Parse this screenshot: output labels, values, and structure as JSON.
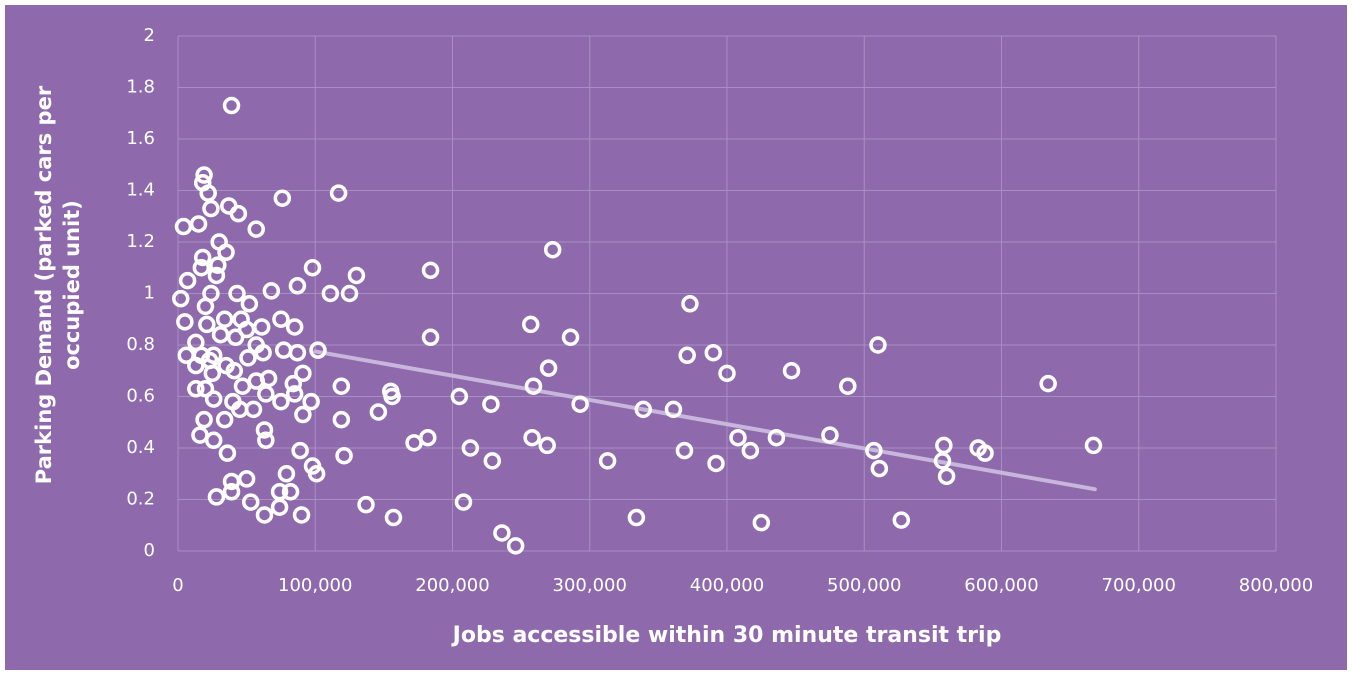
{
  "chart_data": {
    "type": "scatter",
    "x_label": "Jobs accessible within 30 minute transit trip",
    "y_label": "Parking Demand (parked cars per occupied unit)",
    "background": "#8e6aad",
    "marker_color": "#ffffff",
    "grid": true,
    "xlim": [
      0,
      800000
    ],
    "xticks": [
      0,
      {
        "value": 100000,
        "label": "100,000"
      },
      {
        "value": 200000,
        "label": "200,000"
      },
      {
        "value": 300000,
        "label": "300,000"
      },
      {
        "value": 400000,
        "label": "400,000"
      },
      {
        "value": 500000,
        "label": "500,000"
      },
      {
        "value": 600000,
        "label": "600,000"
      },
      {
        "value": 700000,
        "label": "700,000"
      },
      {
        "value": 800000,
        "label": "800,000"
      }
    ],
    "ylim": [
      0,
      2
    ],
    "yticks": [
      0,
      0.2,
      0.4,
      0.6,
      0.8,
      1,
      1.2,
      1.4,
      1.6,
      1.8,
      2
    ],
    "x": [
      667000,
      634000,
      583000,
      588000,
      558000,
      557000,
      560000,
      527000,
      510000,
      507000,
      511000,
      488000,
      475000,
      447000,
      436000,
      425000,
      417000,
      408000,
      400000,
      392000,
      390000,
      373000,
      371000,
      369000,
      361000,
      339000,
      334000,
      313000,
      293000,
      286000,
      273000,
      270000,
      269000,
      259000,
      258000,
      257000,
      246000,
      236000,
      229000,
      228000,
      213000,
      208000,
      205000,
      184000,
      184000,
      182000,
      172000,
      156000,
      155000,
      157000,
      146000,
      137000,
      130000,
      125000,
      121000,
      119000,
      119000,
      117000,
      111000,
      102000,
      101000,
      98000,
      98000,
      97000,
      91000,
      91000,
      90000,
      89000,
      87000,
      85000,
      87000,
      84000,
      85000,
      82000,
      79000,
      75000,
      74000,
      74000,
      76000,
      75000,
      77000,
      68000,
      66000,
      64000,
      63000,
      63000,
      61000,
      62000,
      64000,
      57000,
      55000,
      57000,
      57000,
      52000,
      53000,
      50000,
      51000,
      50000,
      47000,
      44000,
      45000,
      46000,
      43000,
      42000,
      39000,
      40000,
      41000,
      37000,
      39000,
      39000,
      36000,
      35000,
      34000,
      34000,
      35000,
      30000,
      29000,
      28000,
      31000,
      28000,
      26000,
      26000,
      24000,
      24000,
      22000,
      20000,
      20000,
      19000,
      18000,
      18000,
      17000,
      17000,
      19000,
      16000,
      15000,
      13000,
      13000,
      13000,
      7000,
      6000,
      5000,
      4000,
      2000,
      23000,
      26000,
      21000,
      25000
    ],
    "values": [
      0.41,
      0.65,
      0.4,
      0.38,
      0.41,
      0.35,
      0.29,
      0.12,
      0.8,
      0.39,
      0.32,
      0.64,
      0.45,
      0.7,
      0.44,
      0.11,
      0.39,
      0.44,
      0.69,
      0.34,
      0.77,
      0.96,
      0.76,
      0.39,
      0.55,
      0.55,
      0.13,
      0.35,
      0.57,
      0.83,
      1.17,
      0.71,
      0.41,
      0.64,
      0.44,
      0.88,
      0.02,
      0.07,
      0.35,
      0.57,
      0.4,
      0.19,
      0.6,
      1.09,
      0.83,
      0.44,
      0.42,
      0.6,
      0.62,
      0.13,
      0.54,
      0.18,
      1.07,
      1.0,
      0.37,
      0.51,
      0.64,
      1.39,
      1.0,
      0.78,
      0.3,
      0.33,
      1.1,
      0.58,
      0.53,
      0.69,
      0.14,
      0.39,
      1.03,
      0.87,
      0.77,
      0.65,
      0.61,
      0.23,
      0.3,
      0.58,
      0.23,
      0.17,
      1.37,
      0.9,
      0.78,
      1.01,
      0.67,
      0.43,
      0.47,
      0.14,
      0.87,
      0.77,
      0.61,
      1.25,
      0.55,
      0.66,
      0.8,
      0.96,
      0.19,
      0.28,
      0.75,
      0.86,
      0.64,
      1.31,
      0.55,
      0.9,
      1.0,
      0.83,
      1.73,
      0.58,
      0.7,
      1.34,
      0.27,
      0.23,
      0.38,
      1.16,
      0.9,
      0.51,
      0.72,
      1.2,
      1.11,
      1.07,
      0.84,
      0.21,
      0.43,
      0.76,
      1.0,
      1.33,
      1.39,
      0.95,
      0.63,
      1.46,
      1.43,
      1.14,
      1.1,
      0.76,
      0.51,
      0.45,
      1.27,
      0.81,
      0.72,
      0.63,
      1.05,
      0.76,
      0.89,
      1.26,
      0.98,
      0.74,
      0.59,
      0.88,
      0.69
    ],
    "trendline": {
      "color": "#c8b6dc",
      "x": [
        100000,
        668000
      ],
      "y": [
        0.775,
        0.24
      ]
    }
  }
}
